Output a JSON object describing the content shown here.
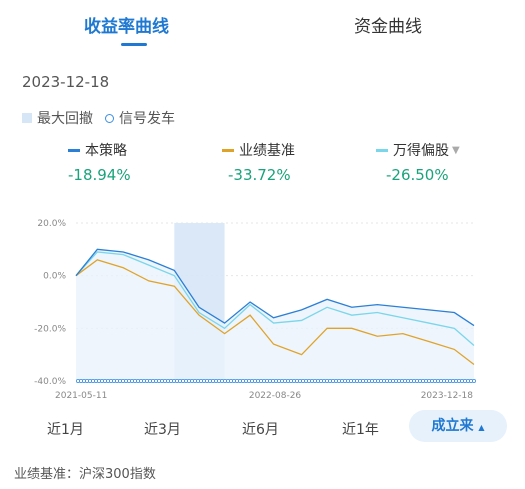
{
  "tabs": {
    "active": "收益率曲线",
    "inactive": "资金曲线"
  },
  "date": "2023-12-18",
  "legend": {
    "drawdown": "最大回撤",
    "signal": "信号发车"
  },
  "series": [
    {
      "name": "本策略",
      "value": "-18.94%",
      "color": "#2a7fd6"
    },
    {
      "name": "业绩基准",
      "value": "-33.72%",
      "color": "#e0a32a"
    },
    {
      "name": "万得偏股",
      "value": "-26.50%",
      "color": "#7ad6ea"
    }
  ],
  "ranges": [
    "近1月",
    "近3月",
    "近6月",
    "近1年",
    "成立来"
  ],
  "footer": "业绩基准：沪深300指数",
  "chart_data": {
    "type": "line",
    "x": [
      "2021-05-11",
      "2021-07-01",
      "2021-09-01",
      "2021-11-01",
      "2022-01-01",
      "2022-03-01",
      "2022-05-01",
      "2022-07-01",
      "2022-08-26",
      "2022-11-01",
      "2023-01-01",
      "2023-03-01",
      "2023-05-01",
      "2023-07-01",
      "2023-09-01",
      "2023-11-01",
      "2023-12-18"
    ],
    "x_ticks": [
      "2021-05-11",
      "2022-08-26",
      "2023-12-18"
    ],
    "y_ticks": [
      "20.0%",
      "0.0%",
      "-20.0%",
      "-40.0%"
    ],
    "ylim": [
      -40,
      20
    ],
    "series": [
      {
        "name": "本策略",
        "values": [
          0,
          10,
          9,
          6,
          2,
          -12,
          -18,
          -10,
          -16,
          -13,
          -9,
          -12,
          -11,
          -12,
          -13,
          -14,
          -18.94
        ]
      },
      {
        "name": "业绩基准",
        "values": [
          0,
          6,
          3,
          -2,
          -4,
          -15,
          -22,
          -15,
          -26,
          -30,
          -20,
          -20,
          -23,
          -22,
          -25,
          -28,
          -33.72
        ]
      },
      {
        "name": "万得偏股",
        "values": [
          0,
          9,
          8,
          4,
          0,
          -14,
          -20,
          -11,
          -18,
          -17,
          -12,
          -15,
          -14,
          -16,
          -18,
          -20,
          -26.5
        ]
      }
    ],
    "drawdown_range": [
      "2022-01-01",
      "2022-05-01"
    ],
    "grid": true
  }
}
